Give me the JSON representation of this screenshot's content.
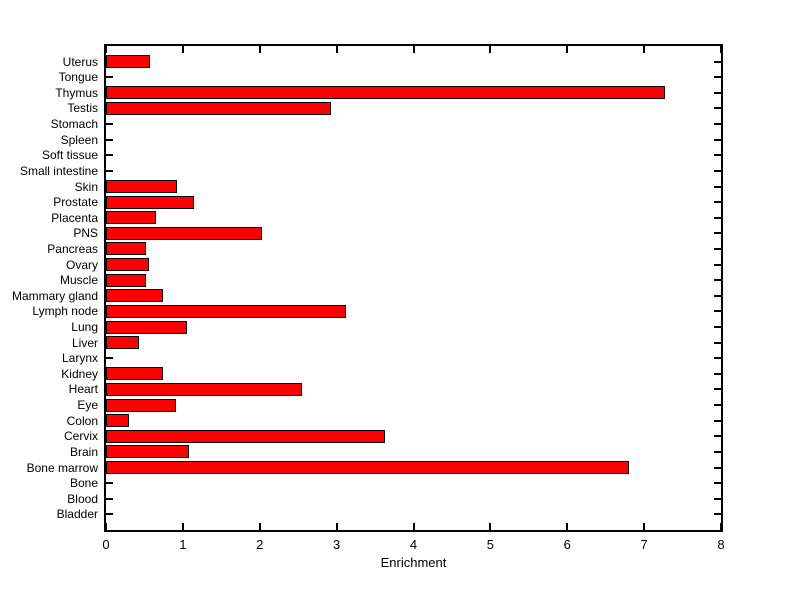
{
  "chart_data": {
    "type": "bar",
    "orientation": "horizontal",
    "title": "",
    "xlabel": "Enrichment",
    "ylabel": "",
    "xlim": [
      0,
      8
    ],
    "x_ticks": [
      0,
      1,
      2,
      3,
      4,
      5,
      6,
      7,
      8
    ],
    "grid": false,
    "legend": "none",
    "categories_order": "top-to-bottom",
    "bar_color": "#FF0000",
    "bar_edge_color": "#000000",
    "axis_color": "#000000",
    "background_color": "#FFFFFF",
    "categories": [
      "Uterus",
      "Tongue",
      "Thymus",
      "Testis",
      "Stomach",
      "Spleen",
      "Soft tissue",
      "Small intestine",
      "Skin",
      "Prostate",
      "Placenta",
      "PNS",
      "Pancreas",
      "Ovary",
      "Muscle",
      "Mammary gland",
      "Lymph node",
      "Lung",
      "Liver",
      "Larynx",
      "Kidney",
      "Heart",
      "Eye",
      "Colon",
      "Cervix",
      "Brain",
      "Bone marrow",
      "Bone",
      "Blood",
      "Bladder"
    ],
    "values": [
      0.55,
      0,
      7.25,
      2.9,
      0,
      0,
      0,
      0,
      0.9,
      1.12,
      0.62,
      2.0,
      0.5,
      0.53,
      0.49,
      0.71,
      3.1,
      1.03,
      0.4,
      0,
      0.72,
      2.52,
      0.89,
      0.27,
      3.6,
      1.06,
      6.78,
      0,
      0,
      0
    ]
  }
}
